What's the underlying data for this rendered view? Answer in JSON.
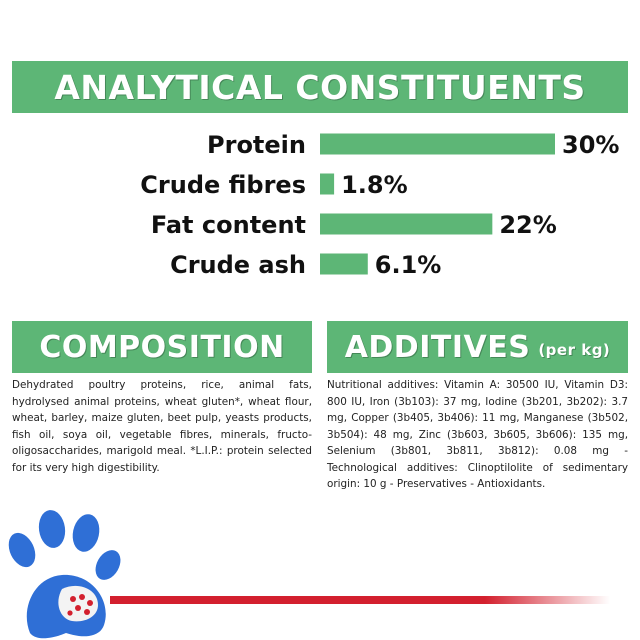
{
  "analytical": {
    "title": "ANALYTICAL CONSTITUENTS"
  },
  "chart_data": {
    "type": "bar",
    "orientation": "horizontal",
    "categories": [
      "Protein",
      "Crude fibres",
      "Fat content",
      "Crude ash"
    ],
    "values": [
      30,
      1.8,
      22,
      6.1
    ],
    "value_labels": [
      "30%",
      "1.8%",
      "22%",
      "6.1%"
    ],
    "unit": "%",
    "xlim": [
      0,
      30
    ],
    "bar_color": "#5db676",
    "grid": false,
    "title": "",
    "xlabel": "",
    "ylabel": ""
  },
  "composition": {
    "title": "COMPOSITION",
    "text": "Dehydrated poultry proteins, rice, animal fats, hydrolysed animal proteins, wheat gluten*, wheat flour, wheat, barley, maize gluten, beet pulp, yeasts products, fish oil, soya oil, vegetable fibres, minerals, fructo-oligosaccharides, marigold meal. *L.I.P.: protein selected for its very high digestibility."
  },
  "additives": {
    "title": "ADDITIVES",
    "subtitle": "(per kg)",
    "text": "Nutritional additives: Vitamin A: 30500 IU, Vitamin D3: 800 IU, Iron (3b103): 37 mg, Iodine (3b201, 3b202): 3.7 mg, Copper (3b405, 3b406): 11 mg, Manganese (3b502, 3b504): 48 mg, Zinc (3b603, 3b605, 3b606): 135 mg, Selenium (3b801, 3b811, 3b812): 0.08 mg - Technological additives: Clinoptilolite of sedimentary origin: 10 g - Preservatives - Antioxidants."
  },
  "colors": {
    "accent_green": "#5db676",
    "paw_blue": "#2f6fd6",
    "ribbon_red": "#d3202e"
  },
  "decor": {
    "paw": "paw-icon",
    "ribbon": "red-ribbon-line"
  }
}
